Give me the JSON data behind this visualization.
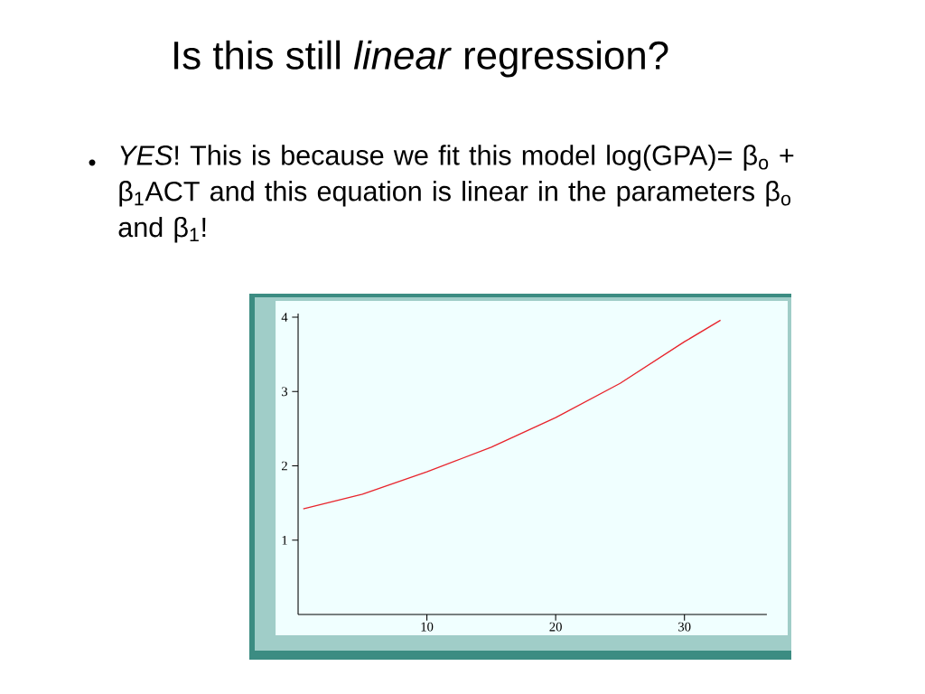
{
  "chart_data": {
    "type": "line",
    "title": "Is this still *linear* regression?",
    "annotations": [
      "*YES*! This is because we fit this model log(GPA)= β$_{o}$ + β$_{1}$ACT  and this equation is linear in the parameters β$_{o}$ and β$_{1}$!"
    ],
    "x": [
      0.4,
      5,
      10,
      15,
      20,
      25,
      30,
      32.8
    ],
    "series": [
      {
        "color": "#e8242c",
        "values": [
          1.42,
          1.62,
          1.92,
          2.25,
          2.65,
          3.11,
          3.67,
          3.96
        ]
      }
    ],
    "xlim": [
      0,
      36.4
    ],
    "ylim": [
      0,
      4.05
    ],
    "xticks": [
      10,
      20,
      30
    ],
    "yticks": [
      1,
      2,
      3,
      4
    ]
  }
}
